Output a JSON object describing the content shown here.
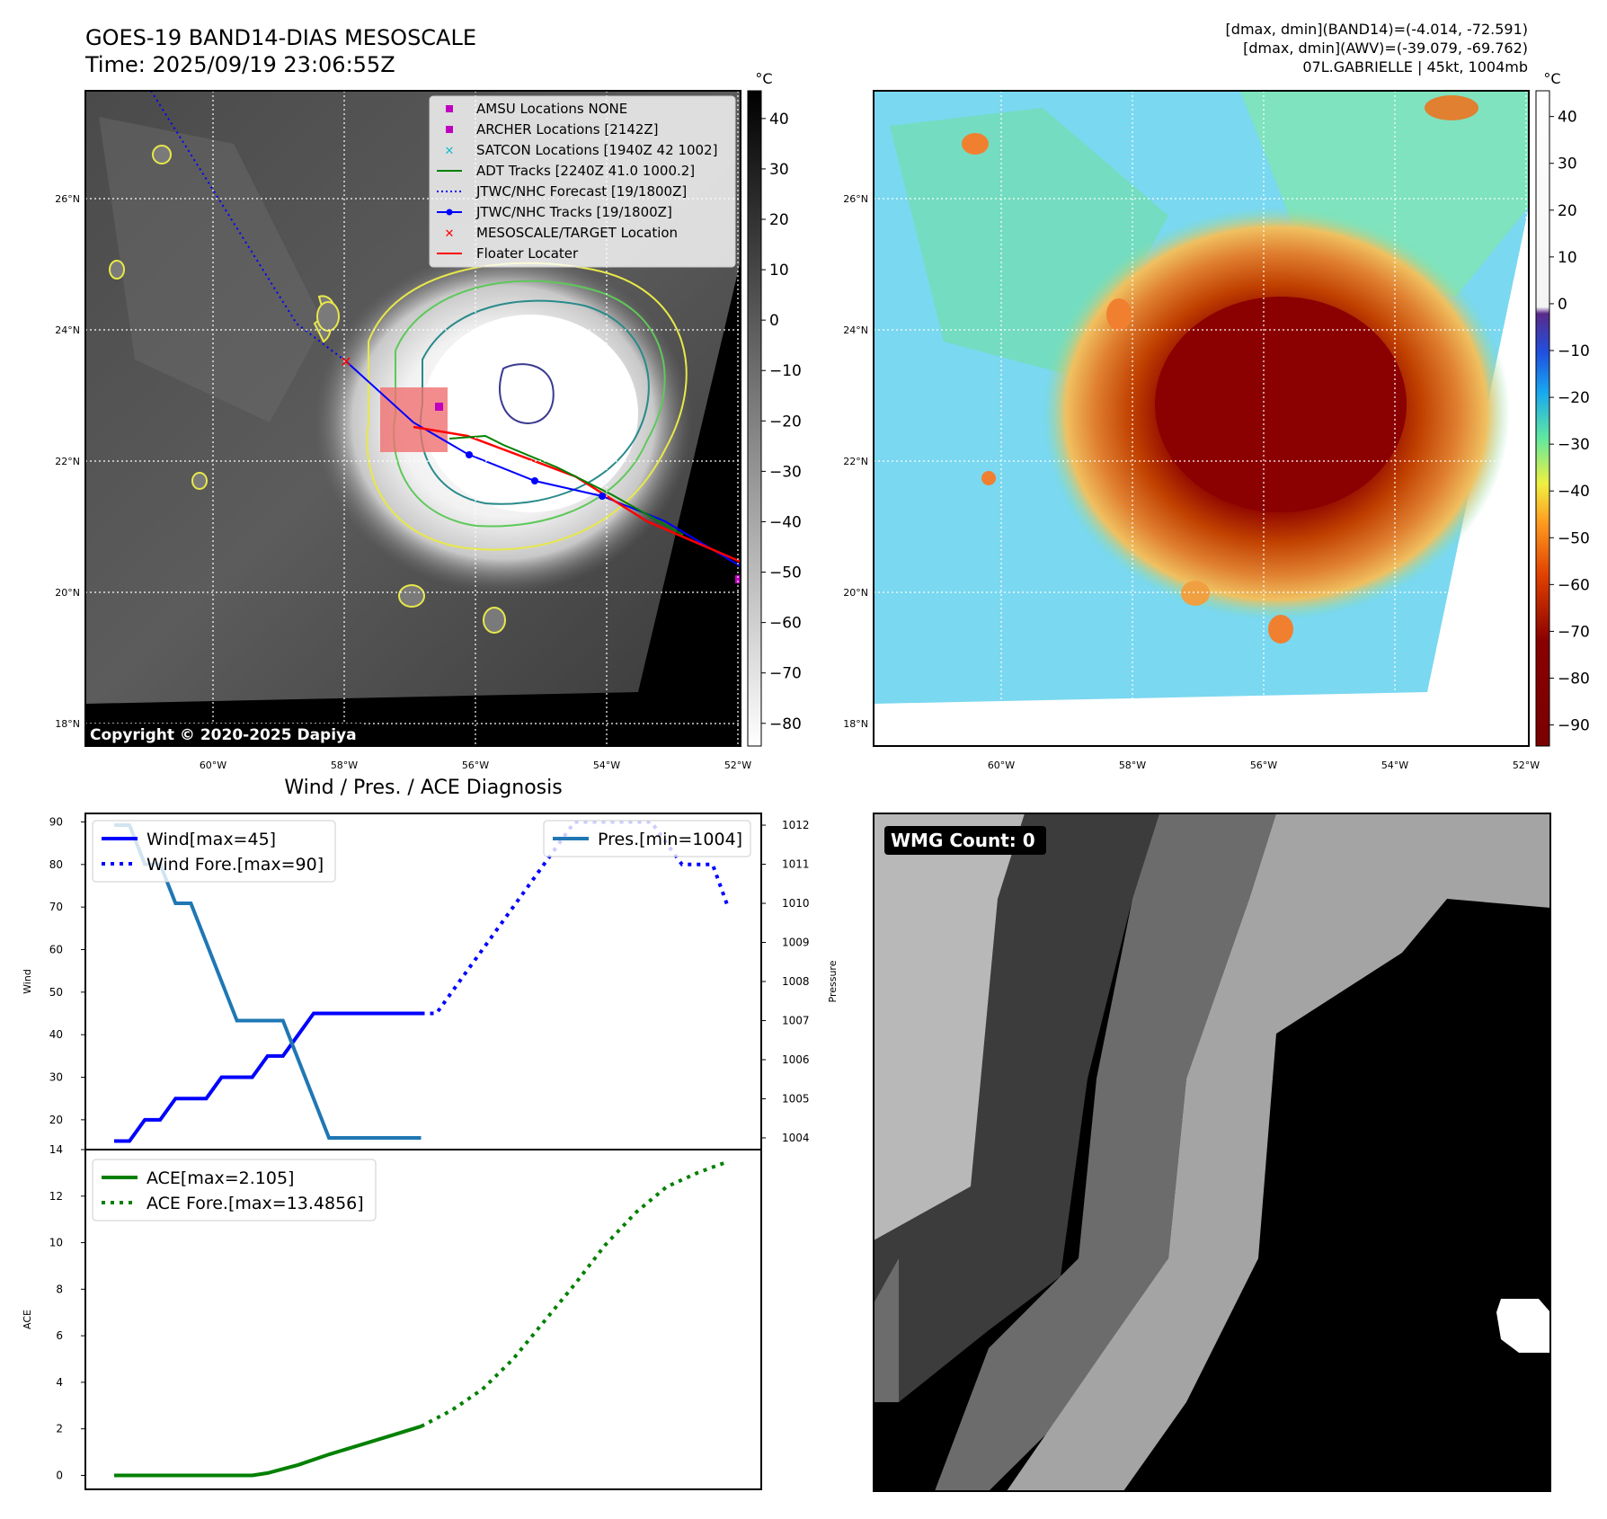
{
  "header": {
    "title": "GOES-19 BAND14-DIAS MESOSCALE",
    "time": "Time: 2025/09/19 23:06:55Z",
    "stats_band14": "[dmax, dmin](BAND14)=(-4.014, -72.591)",
    "stats_awv": "[dmax, dmin](AWV)=(-39.079, -69.762)",
    "storm": "07L.GABRIELLE | 45kt, 1004mb"
  },
  "map": {
    "lat_labels": [
      "26°N",
      "24°N",
      "22°N",
      "20°N",
      "18°N"
    ],
    "lon_labels": [
      "60°W",
      "58°W",
      "56°W",
      "54°W",
      "52°W"
    ],
    "copyright": "Copyright © 2020-2025 Dapiya",
    "legend": [
      {
        "label": "AMSU Locations NONE",
        "marker": "square",
        "color": "#c000c0"
      },
      {
        "label": "ARCHER Locations [2142Z]",
        "marker": "square",
        "color": "#c000c0"
      },
      {
        "label": "SATCON Locations [1940Z 42 1002]",
        "marker": "x",
        "color": "#17becf"
      },
      {
        "label": "ADT Tracks [2240Z 41.0 1000.2]",
        "marker": "line",
        "color": "#008000"
      },
      {
        "label": "JTWC/NHC Forecast [19/1800Z]",
        "marker": "dotted",
        "color": "#0000ff"
      },
      {
        "label": "JTWC/NHC Tracks [19/1800Z]",
        "marker": "line-dot",
        "color": "#0000ff"
      },
      {
        "label": "MESOSCALE/TARGET Location",
        "marker": "x",
        "color": "#ff0000"
      },
      {
        "label": "Floater Locater",
        "marker": "line",
        "color": "#ff0000"
      }
    ]
  },
  "colorbar_gray": {
    "unit": "°C",
    "ticks": [
      "40",
      "30",
      "20",
      "10",
      "0",
      "−10",
      "−20",
      "−30",
      "−40",
      "−50",
      "−60",
      "−70",
      "−80"
    ]
  },
  "colorbar_color": {
    "unit": "°C",
    "ticks": [
      "40",
      "30",
      "20",
      "10",
      "0",
      "−10",
      "−20",
      "−30",
      "−40",
      "−50",
      "−60",
      "−70",
      "−80",
      "−90"
    ]
  },
  "wmg": {
    "label": "WMG Count: 0"
  },
  "chart_data": [
    {
      "type": "line",
      "title": "Wind / Pres. / ACE Diagnosis",
      "ylabel": "Wind",
      "ylabel_right": "Pressure",
      "ylim": [
        13,
        92
      ],
      "ylim_right": [
        1003.7,
        1012.3
      ],
      "yticks": [
        20,
        30,
        40,
        50,
        60,
        70,
        80,
        90
      ],
      "yticks_right": [
        1004,
        1005,
        1006,
        1007,
        1008,
        1009,
        1010,
        1011,
        1012
      ],
      "series": [
        {
          "name": "Wind[max=45]",
          "style": "solid",
          "color": "#0000ff",
          "axis": "left",
          "x": [
            0,
            1,
            2,
            3,
            4,
            5,
            6,
            7,
            8,
            9,
            10,
            11,
            12,
            13,
            14,
            15,
            16,
            17,
            18,
            19,
            20
          ],
          "values": [
            15,
            15,
            20,
            20,
            25,
            25,
            25,
            30,
            30,
            30,
            35,
            35,
            40,
            45,
            45,
            45,
            45,
            45,
            45,
            45,
            45
          ]
        },
        {
          "name": "Wind Fore.[max=90]",
          "style": "dotted",
          "color": "#0000ff",
          "axis": "left",
          "x": [
            20,
            21,
            22,
            23,
            24,
            25,
            26,
            27,
            28,
            29,
            30,
            31,
            32,
            33,
            34,
            35,
            36,
            37,
            38,
            39,
            40
          ],
          "values": [
            45,
            45,
            50,
            55,
            60,
            65,
            70,
            75,
            80,
            85,
            90,
            90,
            90,
            90,
            90,
            90,
            85,
            80,
            80,
            80,
            70
          ]
        },
        {
          "name": "Pres.[min=1004]",
          "style": "solid",
          "color": "#1f77b4",
          "axis": "right",
          "x": [
            0,
            1,
            2,
            3,
            4,
            5,
            6,
            7,
            8,
            9,
            10,
            11,
            12,
            13,
            14,
            15,
            16,
            17,
            18,
            19,
            20
          ],
          "values": [
            1012,
            1012,
            1011,
            1011,
            1010,
            1010,
            1009,
            1008,
            1007,
            1007,
            1007,
            1007,
            1006,
            1005,
            1004,
            1004,
            1004,
            1004,
            1004,
            1004,
            1004
          ]
        }
      ]
    },
    {
      "type": "line",
      "ylabel": "ACE",
      "ylim": [
        -0.6,
        14
      ],
      "yticks": [
        0,
        2,
        4,
        6,
        8,
        10,
        12,
        14
      ],
      "series": [
        {
          "name": "ACE[max=2.105]",
          "style": "solid",
          "color": "#008000",
          "x": [
            0,
            2,
            4,
            6,
            8,
            9,
            10,
            12,
            14,
            16,
            18,
            20
          ],
          "values": [
            0,
            0,
            0,
            0,
            0,
            0,
            0.1,
            0.45,
            0.9,
            1.3,
            1.7,
            2.105
          ]
        },
        {
          "name": "ACE Fore.[max=13.4856]",
          "style": "dotted",
          "color": "#008000",
          "x": [
            20,
            22,
            24,
            26,
            28,
            30,
            32,
            34,
            36,
            38,
            40
          ],
          "values": [
            2.105,
            2.8,
            3.7,
            5.0,
            6.6,
            8.2,
            9.9,
            11.3,
            12.4,
            13.0,
            13.4856
          ]
        }
      ]
    }
  ]
}
